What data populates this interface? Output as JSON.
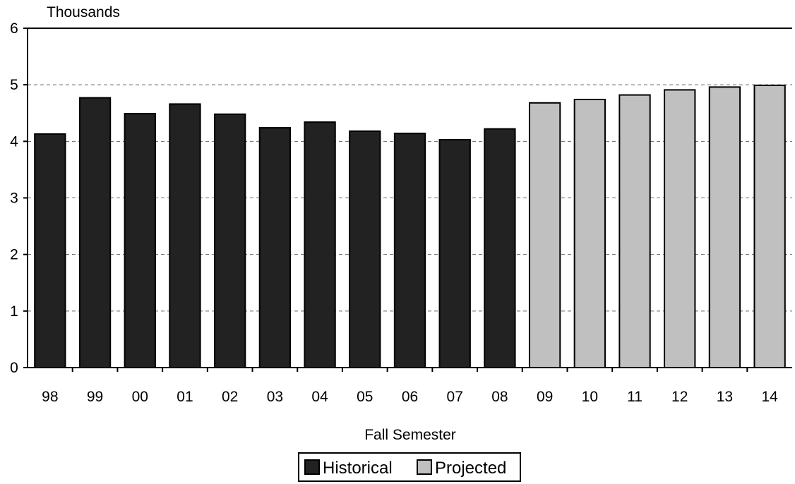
{
  "chart_data": {
    "type": "bar",
    "title": "",
    "ylabel": "Thousands",
    "xlabel": "Fall Semester",
    "ylim": [
      0,
      6
    ],
    "yticks": [
      "0",
      "1",
      "2",
      "3",
      "4",
      "5",
      "6"
    ],
    "grid": "horizontal dashed",
    "legend_position": "bottom-center",
    "categories": [
      "98",
      "99",
      "00",
      "01",
      "02",
      "03",
      "04",
      "05",
      "06",
      "07",
      "08",
      "09",
      "10",
      "11",
      "12",
      "13",
      "14"
    ],
    "series": [
      {
        "name": "Historical",
        "color": "#222222",
        "values": [
          4.13,
          4.77,
          4.49,
          4.66,
          4.48,
          4.24,
          4.34,
          4.18,
          4.14,
          4.03,
          4.22,
          null,
          null,
          null,
          null,
          null,
          null
        ]
      },
      {
        "name": "Projected",
        "color": "#c0c0c0",
        "values": [
          null,
          null,
          null,
          null,
          null,
          null,
          null,
          null,
          null,
          null,
          null,
          4.68,
          4.74,
          4.82,
          4.91,
          4.96,
          4.99
        ]
      }
    ]
  }
}
